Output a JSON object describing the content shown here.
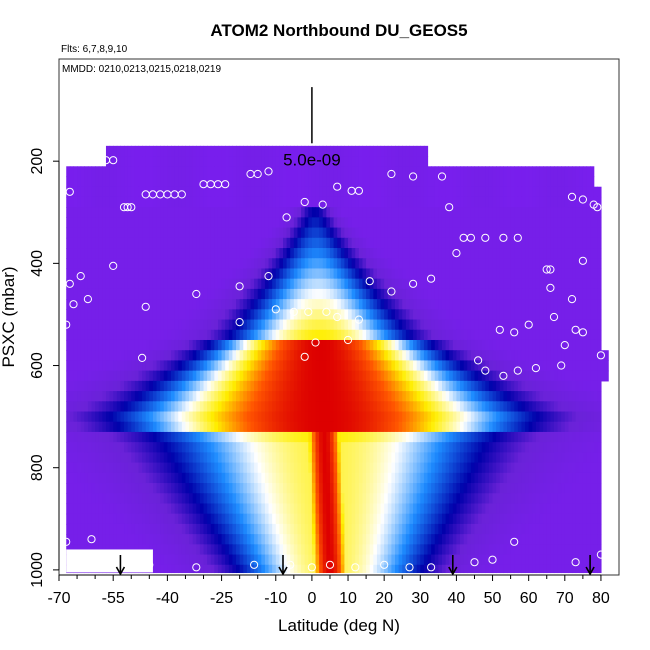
{
  "chart_data": {
    "type": "heatmap",
    "title": "ATOM2 Northbound DU_GEOS5",
    "subtitle_flights": "Flts: 6,7,8,9,10",
    "subtitle_dates": "MMDD: 0210,0213,0215,0218,0219",
    "xlabel": "Latitude (deg N)",
    "ylabel": "PSXC (mbar)",
    "xlim": [
      -70,
      85
    ],
    "ylim": [
      1010,
      0
    ],
    "x_ticks": [
      -70,
      -55,
      -40,
      -25,
      -10,
      0,
      10,
      20,
      30,
      40,
      50,
      60,
      70,
      80
    ],
    "x_minor_ticks": [
      -65,
      -60,
      -50,
      -45,
      -35,
      -30,
      -20,
      -15,
      -5,
      5,
      15,
      25,
      35,
      45,
      55,
      65,
      75
    ],
    "y_ticks": [
      200,
      400,
      600,
      800,
      1000
    ],
    "scale_bar": {
      "label": "5.0e-09",
      "latitude": 0,
      "pressure_top": 55,
      "pressure_bottom": 165
    },
    "colormap": [
      "#7a1ef0",
      "#6a22d8",
      "#0000aa",
      "#1e8cff",
      "#ffffff",
      "#ffee00",
      "#ff5500",
      "#dd0000"
    ],
    "marker_color": "#ffffff",
    "arrow_latitudes": [
      -53,
      -8,
      39,
      77
    ],
    "peak": {
      "latitude_at_1000": 5,
      "latitude_at_500": 2
    },
    "observations": [
      [
        -66,
        195
      ],
      [
        -63,
        200
      ],
      [
        -57,
        198
      ],
      [
        -55,
        198
      ],
      [
        -52,
        290
      ],
      [
        -51,
        290
      ],
      [
        -50,
        290
      ],
      [
        -46,
        265
      ],
      [
        -44,
        265
      ],
      [
        -42,
        265
      ],
      [
        -40,
        265
      ],
      [
        -38,
        265
      ],
      [
        -36,
        265
      ],
      [
        -30,
        245
      ],
      [
        -28,
        245
      ],
      [
        -26,
        245
      ],
      [
        -24,
        245
      ],
      [
        -17,
        225
      ],
      [
        -15,
        225
      ],
      [
        -12,
        220
      ],
      [
        -7,
        310
      ],
      [
        -2,
        280
      ],
      [
        3,
        285
      ],
      [
        7,
        250
      ],
      [
        11,
        258
      ],
      [
        13,
        258
      ],
      [
        22,
        225
      ],
      [
        28,
        230
      ],
      [
        36,
        230
      ],
      [
        38,
        290
      ],
      [
        40,
        380
      ],
      [
        42,
        350
      ],
      [
        44,
        350
      ],
      [
        48,
        350
      ],
      [
        53,
        350
      ],
      [
        57,
        350
      ],
      [
        72,
        270
      ],
      [
        75,
        275
      ],
      [
        78,
        285
      ],
      [
        79,
        290
      ],
      [
        -67,
        260
      ],
      [
        -67,
        440
      ],
      [
        -66,
        480
      ],
      [
        -64,
        425
      ],
      [
        -62,
        470
      ],
      [
        -55,
        405
      ],
      [
        -46,
        485
      ],
      [
        -32,
        460
      ],
      [
        -20,
        445
      ],
      [
        -12,
        425
      ],
      [
        -10,
        490
      ],
      [
        -5,
        495
      ],
      [
        -1,
        495
      ],
      [
        4,
        495
      ],
      [
        7,
        505
      ],
      [
        13,
        510
      ],
      [
        16,
        435
      ],
      [
        22,
        455
      ],
      [
        28,
        440
      ],
      [
        33,
        430
      ],
      [
        65,
        412
      ],
      [
        66,
        412
      ],
      [
        66,
        448
      ],
      [
        67,
        505
      ],
      [
        72,
        470
      ],
      [
        75,
        395
      ],
      [
        73,
        530
      ],
      [
        75,
        535
      ],
      [
        60,
        520
      ],
      [
        56,
        535
      ],
      [
        52,
        530
      ],
      [
        46,
        590
      ],
      [
        48,
        610
      ],
      [
        53,
        620
      ],
      [
        57,
        610
      ],
      [
        62,
        605
      ],
      [
        69,
        600
      ],
      [
        70,
        560
      ],
      [
        80,
        580
      ],
      [
        -68,
        520
      ],
      [
        -47,
        585
      ],
      [
        -20,
        515
      ],
      [
        1,
        555
      ],
      [
        10,
        550
      ],
      [
        -2,
        583
      ],
      [
        -68,
        945
      ],
      [
        -61,
        940
      ],
      [
        -45,
        990
      ],
      [
        -32,
        995
      ],
      [
        -16,
        990
      ],
      [
        -6,
        990
      ],
      [
        0,
        995
      ],
      [
        5,
        990
      ],
      [
        12,
        995
      ],
      [
        20,
        990
      ],
      [
        27,
        995
      ],
      [
        33,
        995
      ],
      [
        45,
        985
      ],
      [
        50,
        980
      ],
      [
        56,
        945
      ],
      [
        73,
        985
      ],
      [
        80,
        970
      ]
    ]
  }
}
